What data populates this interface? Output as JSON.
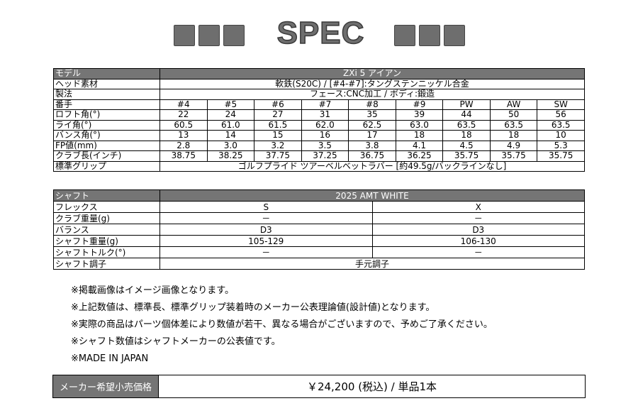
{
  "heading": "SPEC",
  "spec_table": {
    "model_label": "モデル",
    "model": "ZXi 5 アイアン",
    "head_material_label": "ヘッド素材",
    "head_material": "軟鉄(S20C) / [#4-#7]:タングステンニッケル合金",
    "method_label": "製法",
    "method": "フェース:CNC加工 / ボディ:鍛造",
    "rows": [
      {
        "label": "番手",
        "values": [
          "#4",
          "#5",
          "#6",
          "#7",
          "#8",
          "#9",
          "PW",
          "AW",
          "SW"
        ]
      },
      {
        "label": "ロフト角(°)",
        "values": [
          "22",
          "24",
          "27",
          "31",
          "35",
          "39",
          "44",
          "50",
          "56"
        ]
      },
      {
        "label": "ライ角(°)",
        "values": [
          "60.5",
          "61.0",
          "61.5",
          "62.0",
          "62.5",
          "63.0",
          "63.5",
          "63.5",
          "63.5"
        ]
      },
      {
        "label": "バンス角(°)",
        "values": [
          "13",
          "14",
          "15",
          "16",
          "17",
          "18",
          "18",
          "18",
          "10"
        ]
      },
      {
        "label": "FP値(mm)",
        "values": [
          "2.8",
          "3.0",
          "3.2",
          "3.5",
          "3.8",
          "4.1",
          "4.5",
          "4.9",
          "5.3"
        ]
      },
      {
        "label": "クラブ長(インチ)",
        "values": [
          "38.75",
          "38.25",
          "37.75",
          "37.25",
          "36.75",
          "36.25",
          "35.75",
          "35.75",
          "35.75"
        ]
      }
    ],
    "grip_label": "標準グリップ",
    "grip": "ゴルフプライド ツアーベルベットラバー [約49.5g/バックラインなし]"
  },
  "shaft_table": {
    "shaft_label": "シャフト",
    "shaft": "2025 AMT WHITE",
    "rows": [
      {
        "label": "フレックス",
        "values": [
          "S",
          "X"
        ]
      },
      {
        "label": "クラブ重量(g)",
        "values": [
          "－",
          "－"
        ]
      },
      {
        "label": "バランス",
        "values": [
          "D3",
          "D3"
        ]
      },
      {
        "label": "シャフト重量(g)",
        "values": [
          "105-129",
          "106-130"
        ]
      },
      {
        "label": "シャフトトルク(°)",
        "values": [
          "－",
          "－"
        ]
      }
    ],
    "kick_label": "シャフト調子",
    "kick": "手元調子"
  },
  "notes": [
    "※掲載画像はイメージ画像となります。",
    "※上記数値は、標準長、標準グリップ装着時のメーカー公表理論値(設計値)となります。",
    "※実際の商品はパーツ個体差により数値が若干、異なる場合がございますので、予めご了承ください。",
    "※シャフト数値はシャフトメーカーの公表値です。",
    "※MADE IN JAPAN"
  ],
  "price": {
    "label": "メーカー希望小売価格",
    "value": "￥24,200 (税込) / 単品1本"
  }
}
